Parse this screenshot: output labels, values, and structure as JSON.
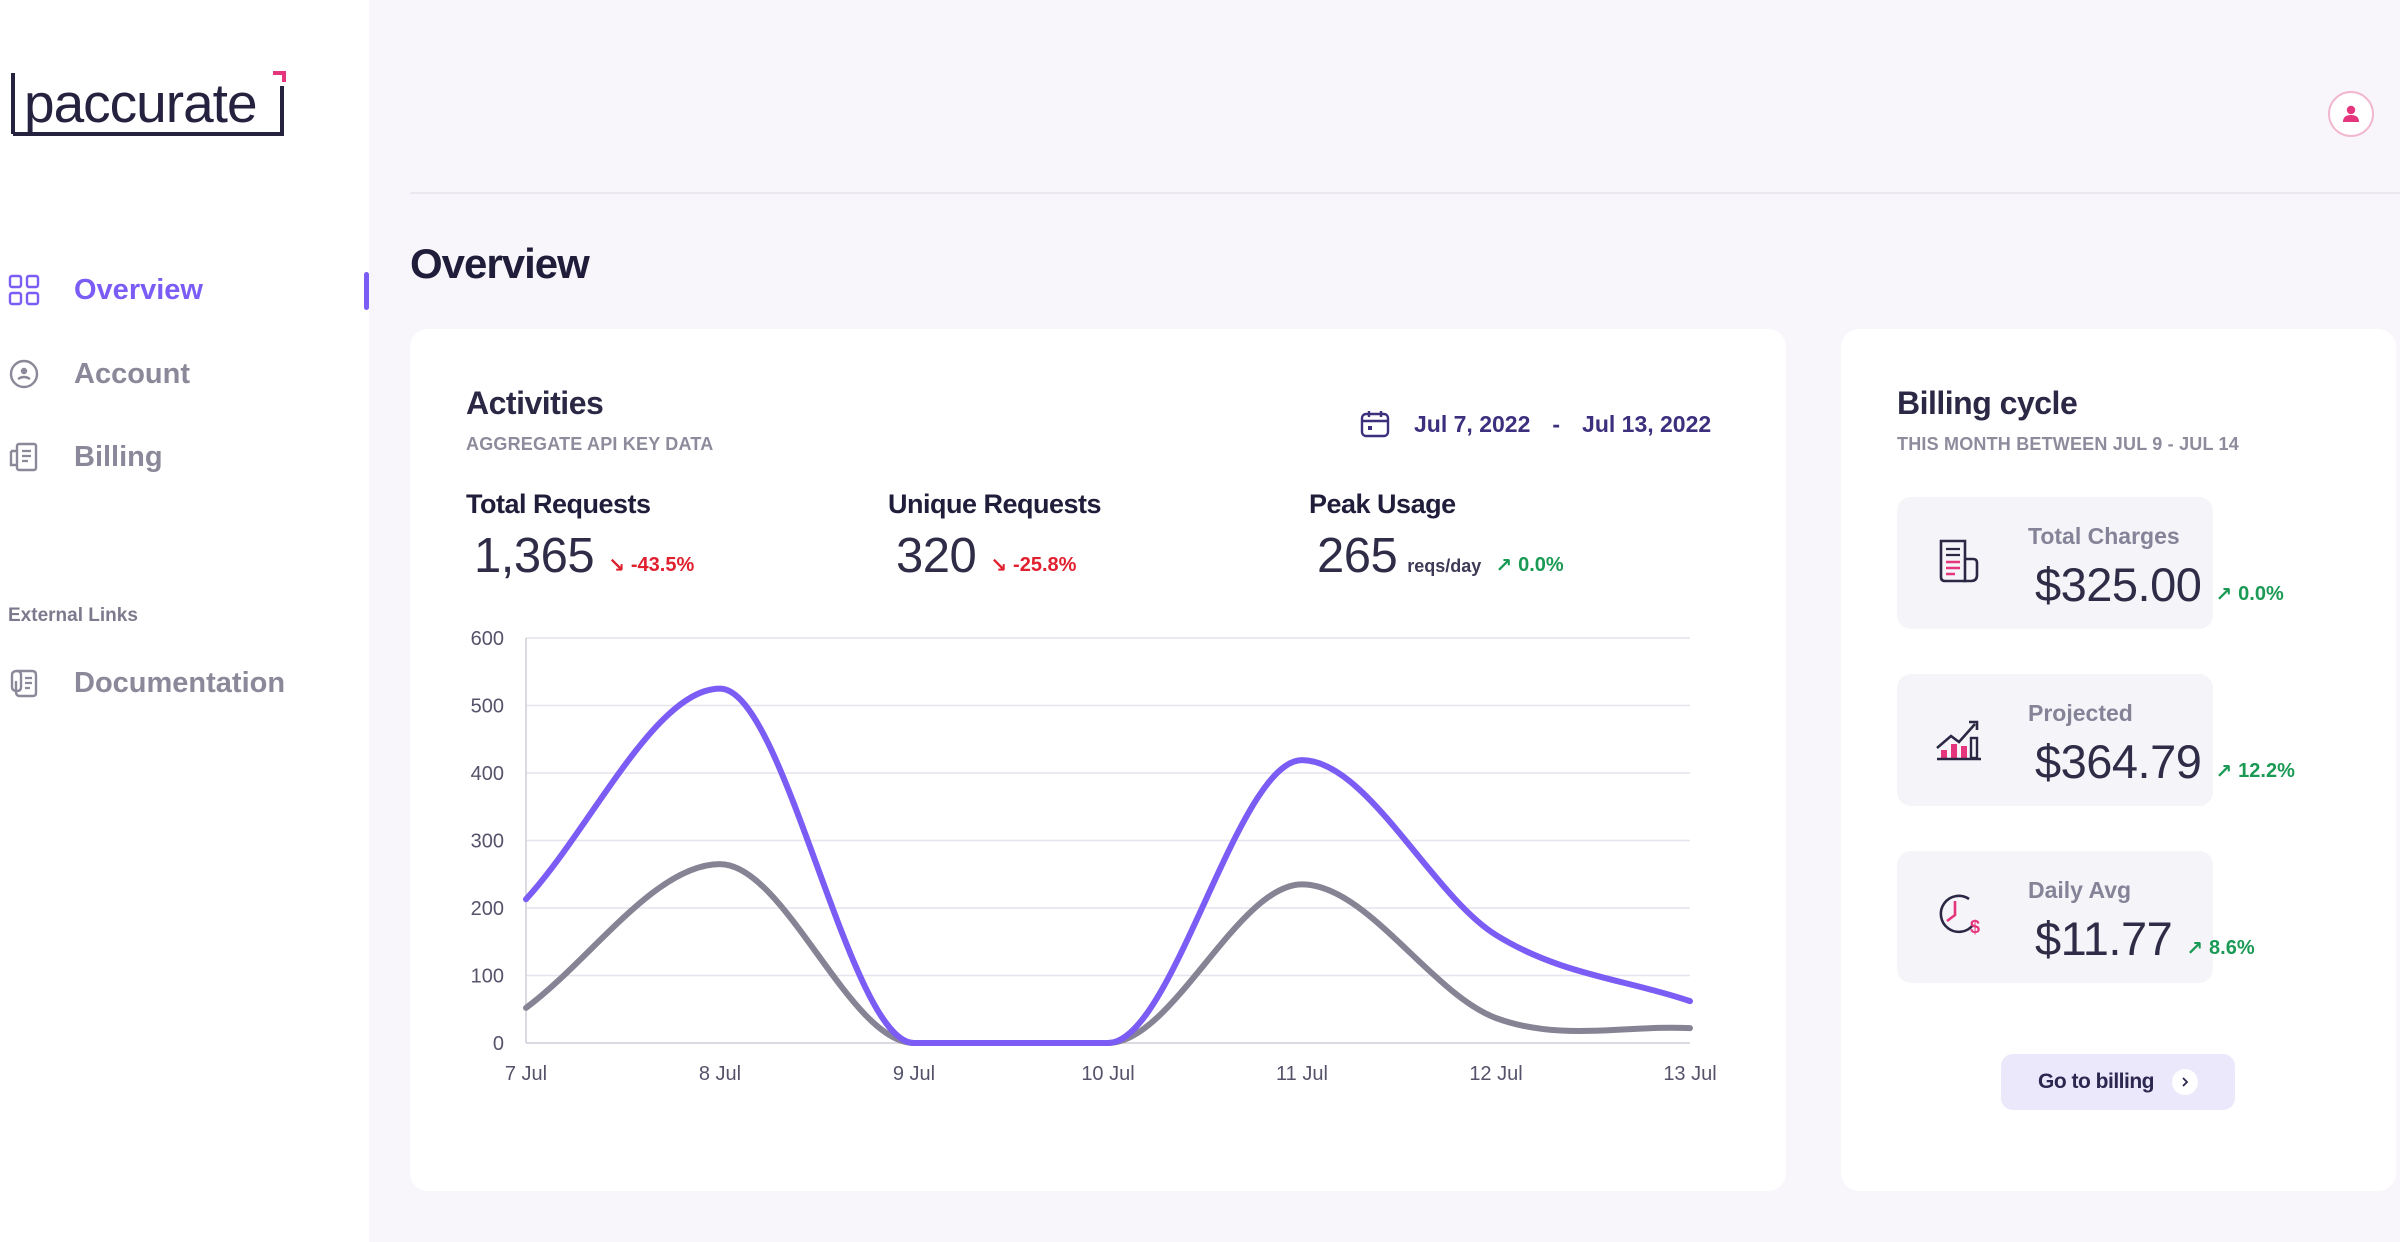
{
  "app": {
    "brand": "paccurate"
  },
  "sidebar": {
    "items": [
      {
        "label": "Overview",
        "icon": "grid-icon",
        "active": true
      },
      {
        "label": "Account",
        "icon": "user-circle-icon",
        "active": false
      },
      {
        "label": "Billing",
        "icon": "receipt-icon",
        "active": false
      }
    ],
    "external_title": "External Links",
    "external": [
      {
        "label": "Documentation",
        "icon": "document-icon"
      }
    ]
  },
  "header": {
    "avatar_icon": "user-icon"
  },
  "page": {
    "title": "Overview"
  },
  "activities": {
    "title": "Activities",
    "subtitle": "AGGREGATE API KEY DATA",
    "date_start": "Jul 7, 2022",
    "date_sep": "-",
    "date_end": "Jul 13, 2022",
    "metrics": [
      {
        "label": "Total Requests",
        "value": "1,365",
        "unit": "",
        "delta": "-43.5%",
        "direction": "down"
      },
      {
        "label": "Unique Requests",
        "value": "320",
        "unit": "",
        "delta": "-25.8%",
        "direction": "down"
      },
      {
        "label": "Peak Usage",
        "value": "265",
        "unit": "reqs/day",
        "delta": "0.0%",
        "direction": "up"
      }
    ]
  },
  "chart_data": {
    "type": "line",
    "x": [
      "7 Jul",
      "8 Jul",
      "9 Jul",
      "10 Jul",
      "11 Jul",
      "12 Jul",
      "13 Jul"
    ],
    "yticks": [
      0,
      100,
      200,
      300,
      400,
      500,
      600
    ],
    "ylim": [
      0,
      600
    ],
    "grid": true,
    "series": [
      {
        "values": [
          213,
          525,
          0,
          0,
          419,
          160,
          62
        ],
        "color": "#7b5cf5"
      },
      {
        "values": [
          52,
          265,
          0,
          0,
          235,
          37,
          22
        ],
        "color": "#868395"
      }
    ]
  },
  "billing": {
    "title": "Billing cycle",
    "subtitle": "THIS MONTH BETWEEN JUL 9 - JUL 14",
    "items": [
      {
        "label": "Total Charges",
        "value": "$325.00",
        "delta": "0.0%",
        "icon": "invoice-icon"
      },
      {
        "label": "Projected",
        "value": "$364.79",
        "delta": "12.2%",
        "icon": "growth-chart-icon"
      },
      {
        "label": "Daily Avg",
        "value": "$11.77",
        "delta": "8.6%",
        "icon": "clock-dollar-icon"
      }
    ],
    "button_label": "Go to billing"
  },
  "colors": {
    "accent": "#7b5cf5",
    "brand_pink": "#e5357c",
    "down": "#e0202e",
    "up": "#1a9a55"
  }
}
